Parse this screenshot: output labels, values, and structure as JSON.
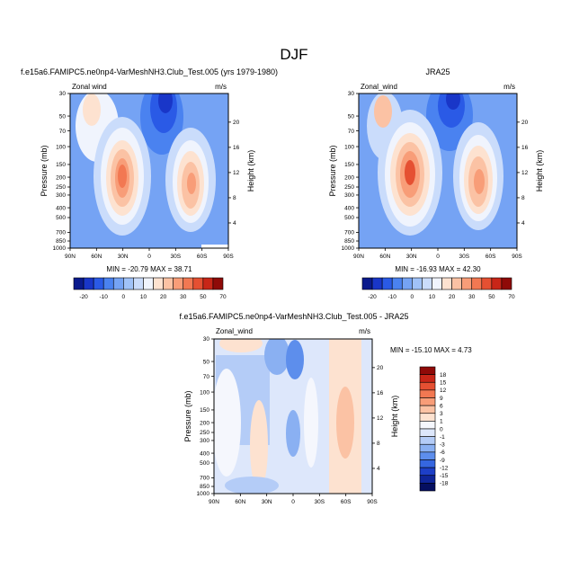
{
  "figure": {
    "title": "DJF"
  },
  "chart_data": [
    {
      "type": "contour",
      "id": "model",
      "title": "f.e15a6.FAMIPC5.ne0np4-VarMeshNH3.Club_Test.005 (yrs 1979-1980)",
      "left_string": "Zonal wind",
      "right_string": "m/s",
      "ylabel": "Pressure (mb)",
      "ylabel_right": "Height (km)",
      "x_ticks": [
        "90N",
        "60N",
        "30N",
        "0",
        "30S",
        "60S",
        "90S"
      ],
      "y_ticks": [
        "30",
        "50",
        "70",
        "100",
        "150",
        "200",
        "250",
        "300",
        "400",
        "500",
        "700",
        "850",
        "1000"
      ],
      "height_ticks": [
        "4",
        "8",
        "12",
        "16",
        "20"
      ],
      "stats": "MIN = -20.79  MAX = 38.71",
      "min": -20.79,
      "max": 38.71,
      "features": [
        {
          "lat": 28,
          "p": 200,
          "value": 38.71,
          "sign": "westerly jet"
        },
        {
          "lat": -48,
          "p": 250,
          "value": 30,
          "sign": "westerly jet"
        },
        {
          "lat": -5,
          "p": 30,
          "value": -20.79,
          "sign": "easterly"
        }
      ]
    },
    {
      "type": "contour",
      "id": "obs",
      "title": "JRA25",
      "left_string": "Zonal_wind",
      "right_string": "m/s",
      "ylabel": "Pressure (mb)",
      "ylabel_right": "Height (km)",
      "x_ticks": [
        "90N",
        "60N",
        "30N",
        "0",
        "30S",
        "60S",
        "90S"
      ],
      "y_ticks": [
        "30",
        "50",
        "70",
        "100",
        "150",
        "200",
        "250",
        "300",
        "400",
        "500",
        "700",
        "850",
        "1000"
      ],
      "height_ticks": [
        "4",
        "8",
        "12",
        "16",
        "20"
      ],
      "stats": "MIN = -16.93  MAX = 42.30",
      "min": -16.93,
      "max": 42.3,
      "features": [
        {
          "lat": 30,
          "p": 200,
          "value": 42.3,
          "sign": "westerly jet"
        },
        {
          "lat": -48,
          "p": 250,
          "value": 33,
          "sign": "westerly jet"
        },
        {
          "lat": -5,
          "p": 30,
          "value": -16.93,
          "sign": "easterly"
        }
      ]
    },
    {
      "type": "contour",
      "id": "diff",
      "title": "f.e15a6.FAMIPC5.ne0np4-VarMeshNH3.Club_Test.005 - JRA25",
      "left_string": "Zonal_wind",
      "right_string": "m/s",
      "ylabel": "Pressure (mb)",
      "ylabel_right": "Height (km)",
      "x_ticks": [
        "90N",
        "60N",
        "30N",
        "0",
        "30S",
        "60S",
        "90S"
      ],
      "y_ticks": [
        "30",
        "50",
        "70",
        "100",
        "150",
        "200",
        "250",
        "300",
        "400",
        "500",
        "700",
        "850",
        "1000"
      ],
      "height_ticks": [
        "4",
        "8",
        "12",
        "16",
        "20"
      ],
      "stats": "MIN = -15.10  MAX =   4.73",
      "min": -15.1,
      "max": 4.73
    }
  ],
  "colorbars": {
    "main": {
      "labels": [
        "-20",
        "-10",
        "0",
        "10",
        "20",
        "30",
        "50",
        "70"
      ],
      "colors": [
        "#0a1a8c",
        "#1936c8",
        "#2a5ae6",
        "#4a82f0",
        "#75a3f4",
        "#a0c2f8",
        "#cadcfb",
        "#f0f4fd",
        "#fde2d0",
        "#fbc2a4",
        "#f89d78",
        "#f27852",
        "#e55032",
        "#c82618",
        "#8f0a08"
      ]
    },
    "diff": {
      "labels": [
        "18",
        "15",
        "12",
        "9",
        "6",
        "3",
        "1",
        "0",
        "-1",
        "-3",
        "-6",
        "-9",
        "-12",
        "-15",
        "-18"
      ],
      "colors": [
        "#8f0a08",
        "#c82618",
        "#e55032",
        "#f27852",
        "#f89d78",
        "#fbc2a4",
        "#fde2d0",
        "#f5f7fd",
        "#dde7fb",
        "#b4ccf7",
        "#8ab0f2",
        "#5d8eec",
        "#3566e0",
        "#1d3fc7",
        "#0f2599",
        "#050f60"
      ]
    }
  }
}
